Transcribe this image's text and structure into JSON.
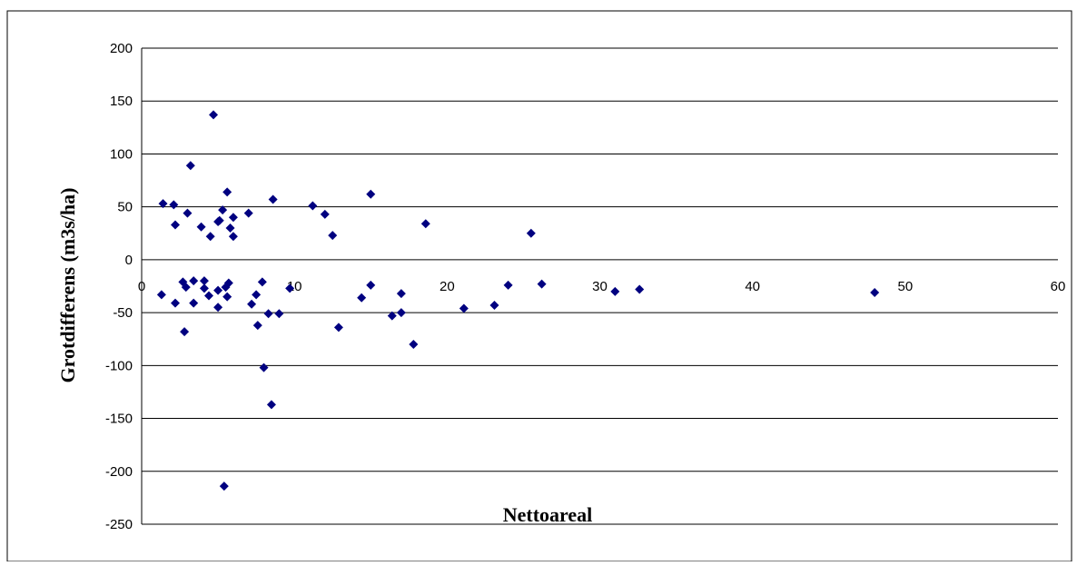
{
  "chart_data": {
    "type": "scatter",
    "title": "",
    "xlabel": "Nettoareal",
    "ylabel": "Grotdifferens (m3s/ha)",
    "xlim": [
      0,
      60
    ],
    "ylim": [
      -250,
      200
    ],
    "x_ticks": [
      "0",
      "10",
      "20",
      "30",
      "40",
      "50",
      "60"
    ],
    "y_ticks": [
      "200",
      "150",
      "100",
      "50",
      "0",
      "-50",
      "-100",
      "-150",
      "-200",
      "-250"
    ],
    "grid": "horizontal",
    "legend": "none",
    "marker": "diamond",
    "colors": {
      "marker": "#000080",
      "grid": "#000000",
      "background": "#ffffff"
    },
    "series": [
      {
        "points": [
          [
            1.3,
            -33
          ],
          [
            1.4,
            53
          ],
          [
            2.1,
            52
          ],
          [
            2.2,
            33
          ],
          [
            2.2,
            -41
          ],
          [
            2.7,
            -21
          ],
          [
            2.8,
            -68
          ],
          [
            2.9,
            -26
          ],
          [
            3.0,
            44
          ],
          [
            3.2,
            89
          ],
          [
            3.4,
            -20
          ],
          [
            3.4,
            -41
          ],
          [
            3.9,
            31
          ],
          [
            4.1,
            -27
          ],
          [
            4.1,
            -20
          ],
          [
            4.4,
            -34
          ],
          [
            4.5,
            22
          ],
          [
            4.7,
            137
          ],
          [
            5.0,
            -29
          ],
          [
            5.0,
            -45
          ],
          [
            5.0,
            36
          ],
          [
            5.1,
            37
          ],
          [
            5.3,
            47
          ],
          [
            5.5,
            -26
          ],
          [
            5.6,
            -35
          ],
          [
            5.6,
            64
          ],
          [
            5.7,
            -22
          ],
          [
            5.8,
            30
          ],
          [
            6.0,
            22
          ],
          [
            6.0,
            40
          ],
          [
            7.0,
            44
          ],
          [
            7.2,
            -42
          ],
          [
            7.5,
            -33
          ],
          [
            7.6,
            -62
          ],
          [
            7.9,
            -21
          ],
          [
            8.0,
            -102
          ],
          [
            8.3,
            -51
          ],
          [
            8.5,
            -137
          ],
          [
            8.6,
            57
          ],
          [
            9.0,
            -51
          ],
          [
            9.7,
            -27
          ],
          [
            11.2,
            51
          ],
          [
            12.0,
            43
          ],
          [
            12.5,
            23
          ],
          [
            12.9,
            -64
          ],
          [
            14.4,
            -36
          ],
          [
            15.0,
            62
          ],
          [
            15.0,
            -24
          ],
          [
            16.4,
            -53
          ],
          [
            17.0,
            -32
          ],
          [
            17.0,
            -50
          ],
          [
            17.8,
            -80
          ],
          [
            18.6,
            34
          ],
          [
            21.1,
            -46
          ],
          [
            23.1,
            -43
          ],
          [
            24.0,
            -24
          ],
          [
            25.5,
            25
          ],
          [
            26.2,
            -23
          ],
          [
            31.0,
            -30
          ],
          [
            32.6,
            -28
          ],
          [
            48.0,
            -31
          ],
          [
            5.4,
            -214
          ]
        ]
      }
    ]
  }
}
